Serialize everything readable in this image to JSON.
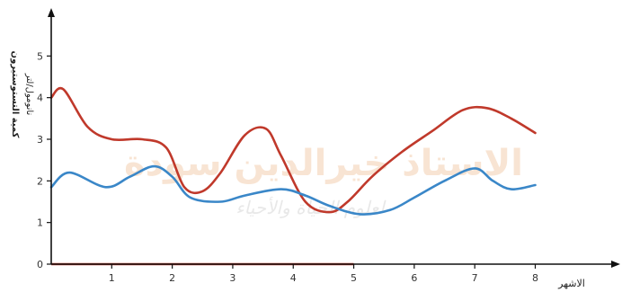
{
  "chart_data": {
    "type": "line",
    "title": "",
    "xlabel": "الاشهر",
    "ylabel_line1": "كمية التستوستيرون",
    "ylabel_line2": "نانومول/لتر",
    "xlim": [
      0,
      9.3
    ],
    "ylim": [
      0,
      6
    ],
    "x_ticks": [
      "1",
      "2",
      "3",
      "4",
      "5",
      "6",
      "7",
      "8"
    ],
    "y_ticks": [
      "0",
      "1",
      "2",
      "3",
      "4",
      "5"
    ],
    "grid": false,
    "legend": "none",
    "series": [
      {
        "color": "#c0392b",
        "x": [
          0,
          0.2,
          0.6,
          1.0,
          1.5,
          1.9,
          2.2,
          2.5,
          2.8,
          3.2,
          3.55,
          3.8,
          4.2,
          4.6,
          4.9,
          5.3,
          5.8,
          6.3,
          6.8,
          7.2,
          7.6,
          8.0
        ],
        "y": [
          4.0,
          4.2,
          3.3,
          3.0,
          3.0,
          2.8,
          1.85,
          1.75,
          2.2,
          3.1,
          3.25,
          2.6,
          1.5,
          1.25,
          1.5,
          2.1,
          2.7,
          3.2,
          3.7,
          3.75,
          3.5,
          3.15
        ]
      },
      {
        "color": "#3a87c8",
        "x": [
          0,
          0.3,
          0.9,
          1.3,
          1.7,
          2.0,
          2.3,
          2.8,
          3.2,
          3.8,
          4.2,
          4.6,
          5.1,
          5.6,
          6.0,
          6.5,
          7.0,
          7.3,
          7.6,
          8.0
        ],
        "y": [
          1.85,
          2.2,
          1.85,
          2.1,
          2.35,
          2.1,
          1.6,
          1.5,
          1.65,
          1.8,
          1.65,
          1.4,
          1.2,
          1.3,
          1.6,
          2.0,
          2.3,
          2.0,
          1.8,
          1.9
        ]
      }
    ],
    "baseline_segment": {
      "color": "#c0392b",
      "x": [
        0,
        5
      ],
      "y": 0
    }
  },
  "watermark": {
    "line1": "الاستاذ خيرالدين سودة",
    "line2": "لعلوم الحياة والأحياء"
  }
}
